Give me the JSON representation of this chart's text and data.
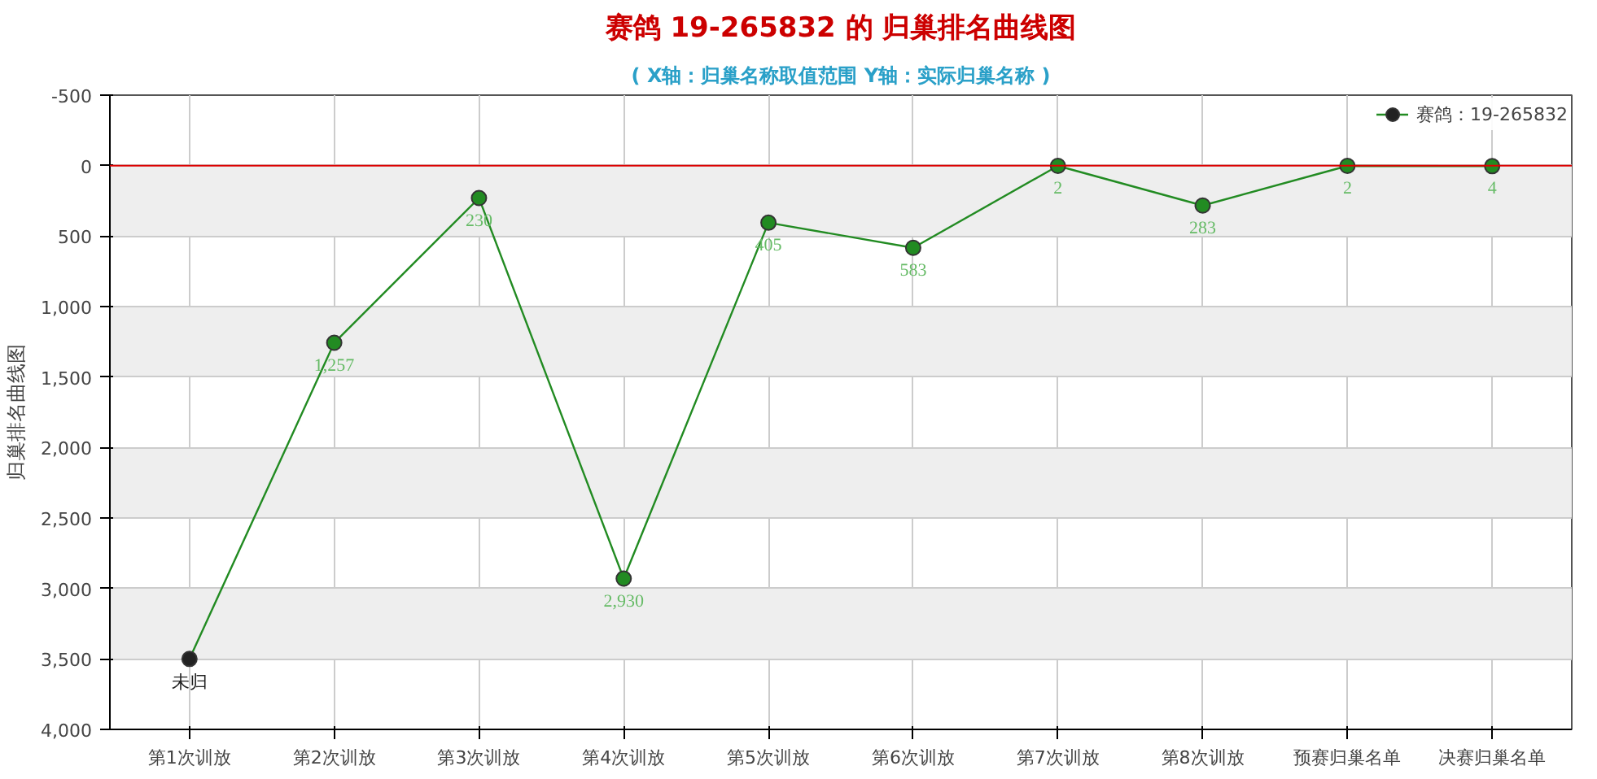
{
  "chart_data": {
    "type": "line",
    "title": "赛鸽 19-265832 的 归巢排名曲线图",
    "subtitle": "( X轴：归巢名称取值范围 Y轴：实际归巢名称 )",
    "ylabel": "归巢排名曲线图",
    "categories": [
      "第1次训放",
      "第2次训放",
      "第3次训放",
      "第4次训放",
      "第5次训放",
      "第6次训放",
      "第7次训放",
      "第8次训放",
      "预赛归巢名单",
      "决赛归巢名单"
    ],
    "series": [
      {
        "name": "赛鸽：19-265832",
        "color": "#228b22",
        "colors": [
          "#222222",
          "#228b22",
          "#228b22",
          "#228b22",
          "#228b22",
          "#228b22",
          "#228b22",
          "#228b22",
          "#228b22",
          "#228b22"
        ],
        "values": [
          3500,
          1257,
          230,
          2930,
          405,
          583,
          2,
          283,
          2,
          4
        ],
        "value_labels": [
          "未归",
          "1,257",
          "230",
          "2,930",
          "405",
          "583",
          "2",
          "283",
          "2",
          "4"
        ]
      }
    ],
    "ylim": [
      4000,
      -500
    ],
    "yticks": [
      -500,
      0,
      500,
      {
        "value": 1000,
        "label": "1,000"
      },
      {
        "value": 1500,
        "label": "1,500"
      },
      {
        "value": 2000,
        "label": "2,000"
      },
      {
        "value": 2500,
        "label": "2,500"
      },
      {
        "value": 3000,
        "label": "3,000"
      },
      {
        "value": 3500,
        "label": "3,500"
      },
      {
        "value": 4000,
        "label": "4,000"
      }
    ],
    "ref_lines": [
      {
        "axis": "y",
        "value": 0,
        "color": "#dd0000"
      }
    ],
    "grid": true,
    "legend": "top right",
    "marker": "circle",
    "line_style": "solid"
  }
}
